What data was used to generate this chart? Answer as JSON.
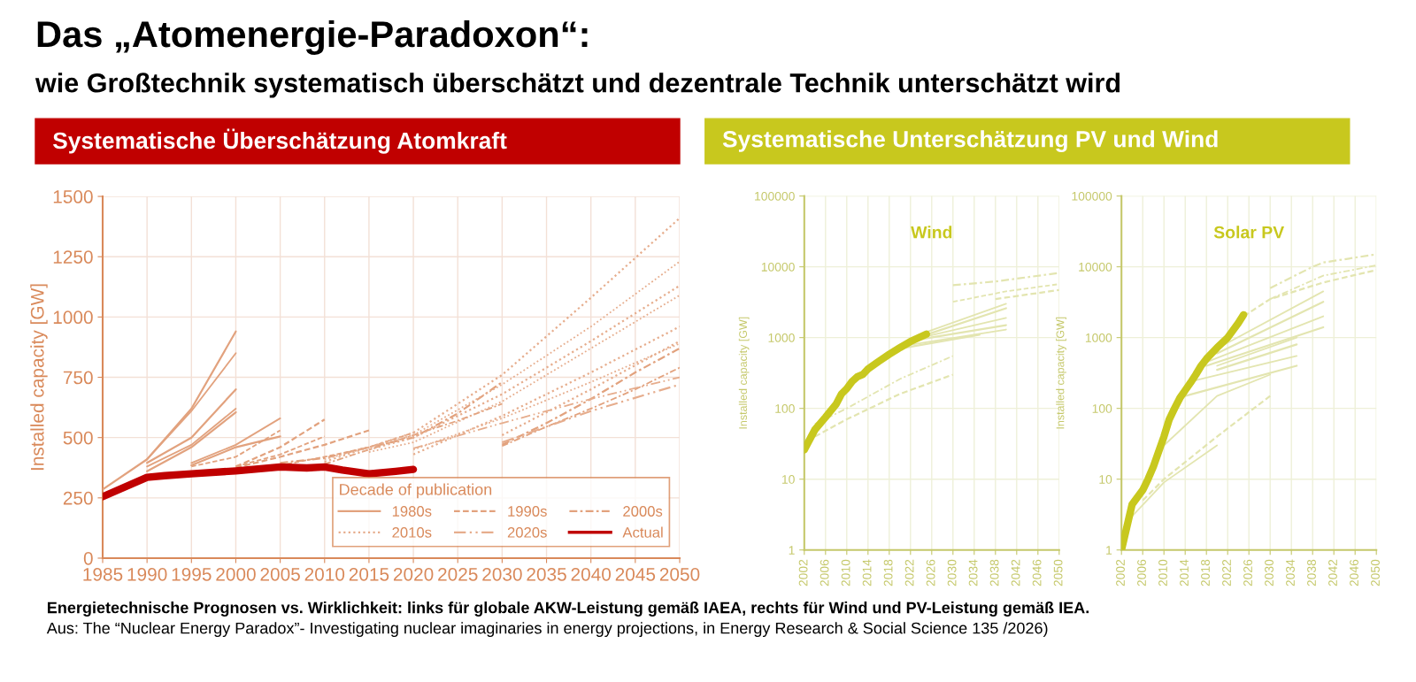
{
  "chart_data": [
    {
      "type": "line",
      "title": "Das „Atomenergie-Paradoxon“:",
      "subtitle": "wie Großtechnik systematisch überschätzt und dezentrale Technik unterschätzt wird",
      "ylabel": "Installed capacity [GW]",
      "legend_title": "Decade of publication",
      "legend": "bottom right",
      "grid": true,
      "xlim": [
        1985,
        2050
      ],
      "xticks": [
        1985,
        1990,
        1995,
        2000,
        2005,
        2010,
        2015,
        2020,
        2025,
        2030,
        2035,
        2040,
        2045,
        2050
      ],
      "ylim": [
        0,
        1500
      ],
      "yticks": [
        0,
        250,
        500,
        750,
        1000,
        1250,
        1500
      ],
      "annotations": [
        "Systematische Überschätzung Atomkraft",
        "Energietechnische Prognosen vs. Wirklichkeit: links für globale AKW-Leistung gemäß IAEA, rechts für Wind und PV-Leistung gemäß IEA.",
        "Aus: The “Nuclear Energy Paradox”- Investigating nuclear imaginaries in energy projections, in Energy Research & Social Science 135 /2026)"
      ],
      "series": [
        {
          "name": "1980s",
          "color": "#e2a27e",
          "line_style": "solid",
          "x": [
            1985,
            1990,
            1995,
            2000
          ],
          "values": [
            285,
            410,
            620,
            940
          ]
        },
        {
          "color": "#e2a27e",
          "line_style": "solid",
          "x": [
            1990,
            1995,
            2000
          ],
          "values": [
            410,
            610,
            850
          ]
        },
        {
          "color": "#e2a27e",
          "line_style": "solid",
          "x": [
            1990,
            1995,
            2000
          ],
          "values": [
            395,
            500,
            700
          ]
        },
        {
          "color": "#e2a27e",
          "line_style": "solid",
          "x": [
            1990,
            1995,
            2000
          ],
          "values": [
            380,
            470,
            620
          ]
        },
        {
          "color": "#e2a27e",
          "line_style": "solid",
          "x": [
            1990,
            1995,
            2000
          ],
          "values": [
            360,
            460,
            605
          ]
        },
        {
          "color": "#e2a27e",
          "line_style": "solid",
          "x": [
            1995,
            2000,
            2005
          ],
          "values": [
            395,
            470,
            580
          ]
        },
        {
          "color": "#e2a27e",
          "line_style": "solid",
          "x": [
            1995,
            2000,
            2005
          ],
          "values": [
            385,
            460,
            505
          ]
        },
        {
          "name": "1990s",
          "color": "#e2a27e",
          "line_style": "dashed",
          "x": [
            1995,
            2000,
            2005
          ],
          "values": [
            380,
            420,
            530
          ]
        },
        {
          "color": "#e2a27e",
          "line_style": "dashed",
          "x": [
            2000,
            2005,
            2010
          ],
          "values": [
            380,
            460,
            575
          ]
        },
        {
          "color": "#e2a27e",
          "line_style": "dashed",
          "x": [
            2000,
            2005,
            2010
          ],
          "values": [
            380,
            430,
            505
          ]
        },
        {
          "color": "#e2a27e",
          "line_style": "dashed",
          "x": [
            2000,
            2005,
            2010,
            2015
          ],
          "values": [
            375,
            420,
            470,
            530
          ]
        },
        {
          "color": "#e2a27e",
          "line_style": "dashed",
          "x": [
            2005,
            2010,
            2015,
            2020
          ],
          "values": [
            385,
            420,
            460,
            520
          ]
        },
        {
          "name": "2000s",
          "color": "#e2a27e",
          "line_style": "dashdot",
          "x": [
            2005,
            2010,
            2015,
            2020,
            2025,
            2030
          ],
          "values": [
            395,
            415,
            460,
            500,
            600,
            730
          ]
        },
        {
          "color": "#e2a27e",
          "line_style": "dashdot",
          "x": [
            2010,
            2015,
            2020,
            2025,
            2030
          ],
          "values": [
            390,
            450,
            510,
            570,
            640
          ]
        },
        {
          "color": "#e2a27e",
          "line_style": "dashdot",
          "x": [
            2030,
            2035,
            2040,
            2045,
            2050
          ],
          "values": [
            470,
            560,
            660,
            770,
            870
          ]
        },
        {
          "color": "#e2a27e",
          "line_style": "dashdot",
          "x": [
            2030,
            2035,
            2040,
            2045,
            2050
          ],
          "values": [
            465,
            545,
            620,
            700,
            790
          ]
        },
        {
          "name": "2010s",
          "color": "#e6ad8d",
          "line_style": "dotted",
          "x": [
            2010,
            2020,
            2030,
            2040,
            2050
          ],
          "values": [
            400,
            520,
            760,
            1080,
            1410
          ]
        },
        {
          "color": "#e6ad8d",
          "line_style": "dotted",
          "x": [
            2010,
            2020,
            2030,
            2040,
            2050
          ],
          "values": [
            410,
            510,
            720,
            960,
            1230
          ]
        },
        {
          "color": "#e6ad8d",
          "line_style": "dotted",
          "x": [
            2015,
            2020,
            2030,
            2040,
            2050
          ],
          "values": [
            450,
            500,
            680,
            900,
            1130
          ]
        },
        {
          "color": "#e6ad8d",
          "line_style": "dotted",
          "x": [
            2015,
            2020,
            2030,
            2040,
            2050
          ],
          "values": [
            440,
            480,
            650,
            870,
            1090
          ]
        },
        {
          "color": "#e6ad8d",
          "line_style": "dotted",
          "x": [
            2020,
            2030,
            2040,
            2050
          ],
          "values": [
            430,
            590,
            770,
            960
          ]
        },
        {
          "color": "#e6ad8d",
          "line_style": "dotted",
          "x": [
            2020,
            2030,
            2040,
            2050
          ],
          "values": [
            450,
            580,
            730,
            890
          ]
        },
        {
          "color": "#e6ad8d",
          "line_style": "dotted",
          "x": [
            2030,
            2040,
            2050
          ],
          "values": [
            510,
            700,
            900
          ]
        },
        {
          "name": "2020s",
          "color": "#e6ad8d",
          "line_style": "dashdotdot",
          "x": [
            2020,
            2030,
            2040,
            2050
          ],
          "values": [
            455,
            560,
            660,
            750
          ]
        },
        {
          "color": "#e6ad8d",
          "line_style": "dashdotdot",
          "x": [
            2030,
            2040,
            2050
          ],
          "values": [
            480,
            610,
            720
          ]
        },
        {
          "name": "Actual",
          "color": "#c00000",
          "line_style": "solid",
          "x": [
            1985,
            1990,
            1992,
            1995,
            2000,
            2005,
            2008,
            2010,
            2012,
            2015,
            2018,
            2020
          ],
          "values": [
            255,
            335,
            342,
            350,
            362,
            378,
            374,
            378,
            365,
            350,
            360,
            368
          ]
        }
      ]
    },
    {
      "type": "other",
      "title": "Systematische Unterschätzung PV und Wind"
    },
    {
      "type": "line",
      "title": "Wind",
      "ylabel": "Installed capacity [GW]",
      "log": "y",
      "grid": true,
      "xlim": [
        2002,
        2050
      ],
      "xticks": [
        2002,
        2006,
        2010,
        2014,
        2018,
        2022,
        2026,
        2030,
        2034,
        2038,
        2042,
        2046,
        2050
      ],
      "ylim": [
        1,
        100000
      ],
      "yticks": [
        1,
        10,
        100,
        1000,
        10000,
        100000
      ],
      "series": [
        {
          "color": "#e3e5b0",
          "line_style": "dashdot",
          "x": [
            2030,
            2038,
            2042,
            2050
          ],
          "values": [
            5500,
            6200,
            6800,
            8200
          ]
        },
        {
          "color": "#e3e5b0",
          "line_style": "dashed",
          "x": [
            2030,
            2040,
            2050
          ],
          "values": [
            3200,
            4500,
            5700
          ]
        },
        {
          "color": "#e3e5b0",
          "line_style": "dashed",
          "x": [
            2038,
            2050
          ],
          "values": [
            3500,
            4700
          ]
        },
        {
          "color": "#e3e5b0",
          "line_style": "solid",
          "x": [
            2025,
            2040
          ],
          "values": [
            1200,
            3000
          ]
        },
        {
          "color": "#e3e5b0",
          "line_style": "solid",
          "x": [
            2025,
            2040
          ],
          "values": [
            1100,
            2600
          ]
        },
        {
          "color": "#e3e5b0",
          "line_style": "solid",
          "x": [
            2024,
            2040
          ],
          "values": [
            1000,
            1900
          ]
        },
        {
          "color": "#e3e5b0",
          "line_style": "solid",
          "x": [
            2022,
            2040
          ],
          "values": [
            900,
            1500
          ]
        },
        {
          "color": "#e3e5b0",
          "line_style": "solid",
          "x": [
            2020,
            2040
          ],
          "values": [
            750,
            1300
          ]
        },
        {
          "color": "#e3e5b0",
          "line_style": "solid",
          "x": [
            2020,
            2035
          ],
          "values": [
            700,
            1100
          ]
        },
        {
          "color": "#e3e5b0",
          "line_style": "dashdot",
          "x": [
            2004,
            2010,
            2020,
            2030
          ],
          "values": [
            60,
            100,
            260,
            550
          ]
        },
        {
          "color": "#e3e5b0",
          "line_style": "dashed",
          "x": [
            2004,
            2010,
            2020,
            2030
          ],
          "values": [
            40,
            70,
            160,
            300
          ]
        },
        {
          "color": "#c8c81e",
          "line_style": "solid",
          "x": [
            2002,
            2004,
            2006,
            2008,
            2009,
            2010,
            2011,
            2012,
            2013,
            2014,
            2016,
            2018,
            2020,
            2022,
            2025
          ],
          "values": [
            26,
            50,
            75,
            115,
            160,
            190,
            240,
            280,
            300,
            360,
            460,
            580,
            720,
            880,
            1120
          ]
        }
      ]
    },
    {
      "type": "line",
      "title": "Solar PV",
      "ylabel": "Installed capacity [GW]",
      "log": "y",
      "grid": true,
      "xlim": [
        2002,
        2050
      ],
      "xticks": [
        2002,
        2006,
        2010,
        2014,
        2018,
        2022,
        2026,
        2030,
        2034,
        2038,
        2042,
        2046,
        2050
      ],
      "ylim": [
        1,
        100000
      ],
      "yticks": [
        1,
        10,
        100,
        1000,
        10000,
        100000
      ],
      "series": [
        {
          "color": "#e3e5b0",
          "line_style": "dashdot",
          "x": [
            2030,
            2038,
            2040,
            2050
          ],
          "values": [
            5000,
            10000,
            11500,
            15000
          ]
        },
        {
          "color": "#e3e5b0",
          "line_style": "dashdot",
          "x": [
            2030,
            2040,
            2050
          ],
          "values": [
            3500,
            7500,
            10500
          ]
        },
        {
          "color": "#e3e5b0",
          "line_style": "dashed",
          "x": [
            2025,
            2030,
            2040,
            2050
          ],
          "values": [
            2000,
            3500,
            6000,
            9000
          ]
        },
        {
          "color": "#e3e5b0",
          "line_style": "solid",
          "x": [
            2020,
            2040
          ],
          "values": [
            700,
            4500
          ]
        },
        {
          "color": "#e3e5b0",
          "line_style": "solid",
          "x": [
            2020,
            2040
          ],
          "values": [
            600,
            3200
          ]
        },
        {
          "color": "#e3e5b0",
          "line_style": "solid",
          "x": [
            2018,
            2040
          ],
          "values": [
            450,
            2000
          ]
        },
        {
          "color": "#e3e5b0",
          "line_style": "solid",
          "x": [
            2018,
            2040
          ],
          "values": [
            400,
            1400
          ]
        },
        {
          "color": "#e3e5b0",
          "line_style": "solid",
          "x": [
            2020,
            2035
          ],
          "values": [
            400,
            1000
          ]
        },
        {
          "color": "#e3e5b0",
          "line_style": "solid",
          "x": [
            2020,
            2035
          ],
          "values": [
            350,
            800
          ]
        },
        {
          "color": "#e3e5b0",
          "line_style": "solid",
          "x": [
            2016,
            2035
          ],
          "values": [
            250,
            550
          ]
        },
        {
          "color": "#e3e5b0",
          "line_style": "solid",
          "x": [
            2014,
            2035
          ],
          "values": [
            150,
            400
          ]
        },
        {
          "color": "#e3e5b0",
          "line_style": "solid",
          "x": [
            2010,
            2020,
            2030
          ],
          "values": [
            30,
            150,
            300
          ]
        },
        {
          "color": "#e3e5b0",
          "line_style": "dashed",
          "x": [
            2006,
            2010,
            2020,
            2030
          ],
          "values": [
            5,
            10,
            40,
            150
          ]
        },
        {
          "color": "#e3e5b0",
          "line_style": "solid",
          "x": [
            2004,
            2010,
            2020
          ],
          "values": [
            3,
            9,
            30
          ]
        },
        {
          "color": "#c8c81e",
          "line_style": "solid",
          "x": [
            2002,
            2004,
            2006,
            2007,
            2008,
            2010,
            2011,
            2012,
            2013,
            2014,
            2015,
            2016,
            2017,
            2018,
            2020,
            2022,
            2024,
            2025
          ],
          "values": [
            1,
            4.4,
            7,
            10,
            15,
            40,
            70,
            100,
            140,
            180,
            230,
            300,
            400,
            500,
            720,
            1000,
            1600,
            2100
          ]
        }
      ]
    }
  ]
}
